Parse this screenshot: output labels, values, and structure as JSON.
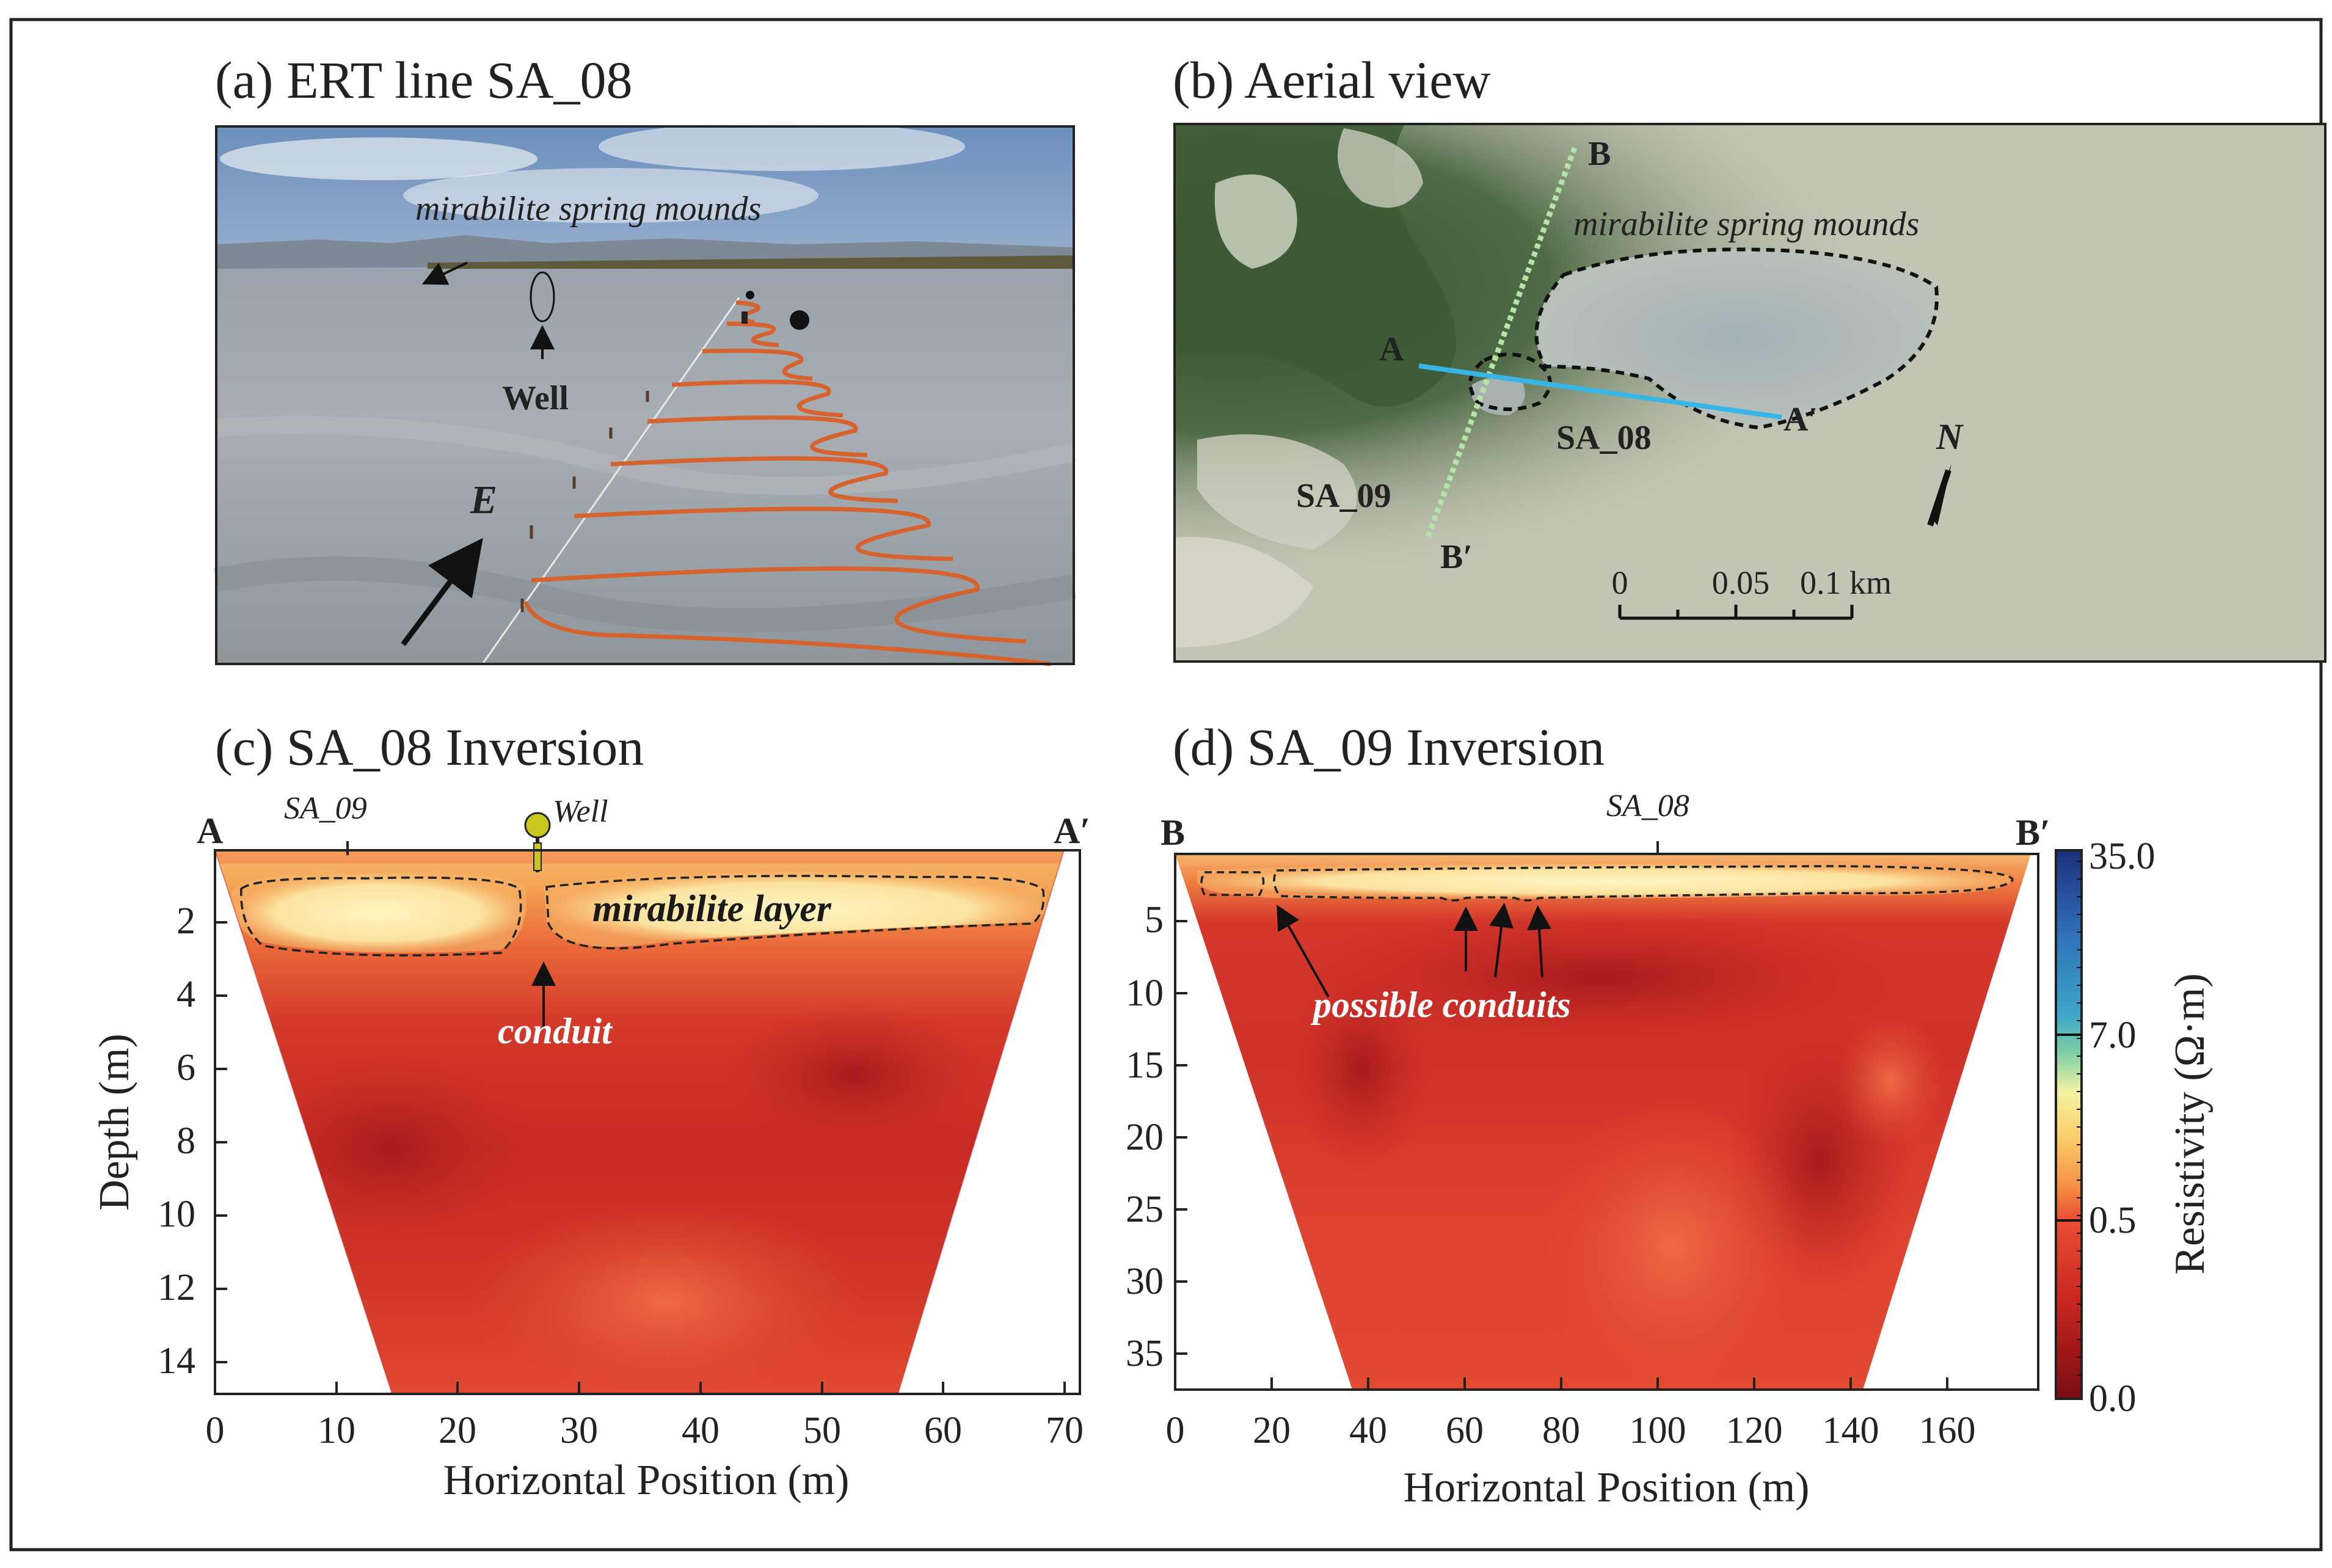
{
  "panels": {
    "a": {
      "title": "(a) ERT line SA_08",
      "label_mounds": "mirabilite spring mounds",
      "label_well": "Well",
      "label_direction": "E"
    },
    "b": {
      "title": "(b) Aerial view",
      "label_B": "B",
      "label_Bprime": "B′",
      "label_A": "A",
      "label_Aprime": "A′",
      "label_mounds": "mirabilite spring mounds",
      "label_sa08": "SA_08",
      "label_sa09": "SA_09",
      "north": "N",
      "scalebar": {
        "ticks": [
          "0",
          "0.05",
          "0.1 km"
        ]
      }
    },
    "c": {
      "title": "(c) SA_08 Inversion",
      "label_left": "A",
      "label_right": "A′",
      "label_cross": "SA_09",
      "label_well": "Well",
      "label_layer": "mirabilite layer",
      "label_conduit": "conduit",
      "ylabel": "Depth (m)",
      "xlabel": "Horizontal Position (m)",
      "yticks": [
        "2",
        "4",
        "6",
        "8",
        "10",
        "12",
        "14"
      ],
      "xticks": [
        "0",
        "10",
        "20",
        "30",
        "40",
        "50",
        "60",
        "70"
      ]
    },
    "d": {
      "title": "(d) SA_09 Inversion",
      "label_left": "B",
      "label_right": "B′",
      "label_cross": "SA_08",
      "label_conduits": "possible conduits",
      "xlabel": "Horizontal Position (m)",
      "yticks": [
        "5",
        "10",
        "15",
        "20",
        "25",
        "30",
        "35"
      ],
      "xticks": [
        "0",
        "20",
        "40",
        "60",
        "80",
        "100",
        "120",
        "140",
        "160"
      ]
    },
    "colorbar": {
      "label": "Resistivity (Ω·m)",
      "ticks": [
        "35.0",
        "7.0",
        "0.5",
        "0.0"
      ]
    }
  },
  "colors": {
    "deep_red": "#b51d21",
    "red": "#d8322b",
    "orange": "#f07a3e",
    "light_yellow": "#fde8a0",
    "cyan_line": "#37b6e6",
    "green_line": "#b5e4a7",
    "well_yellow": "#c8c81e"
  }
}
